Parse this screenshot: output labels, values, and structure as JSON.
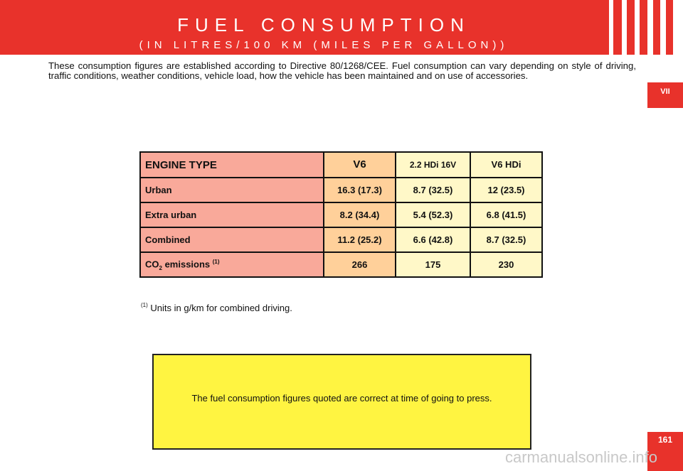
{
  "header": {
    "title": "FUEL CONSUMPTION",
    "subtitle": "(IN LITRES/100 KM (MILES PER GALLON))"
  },
  "intro_text": "These consumption figures are established according to Directive 80/1268/CEE. Fuel consumption can vary depending on style of driving, traffic conditions, weather conditions, vehicle load, how the vehicle has been maintained and on use of accessories.",
  "section_tab": "VII",
  "page_number": "161",
  "table": {
    "headers": [
      "ENGINE TYPE",
      "V6",
      "2.2 HDi 16V",
      "V6 HDi"
    ],
    "rows": [
      {
        "label": "Urban",
        "v6": "16.3 (17.3)",
        "hdi22": "8.7 (32.5)",
        "v6hdi": "12 (23.5)"
      },
      {
        "label": "Extra urban",
        "v6": "8.2 (34.4)",
        "hdi22": "5.4 (52.3)",
        "v6hdi": "6.8 (41.5)"
      },
      {
        "label": "Combined",
        "v6": "11.2 (25.2)",
        "hdi22": "6.6 (42.8)",
        "v6hdi": "8.7 (32.5)"
      }
    ],
    "co2": {
      "label_main": "CO",
      "label_sub": "2",
      "label_rest": " emissions ",
      "label_sup": "(1)",
      "v6": "266",
      "hdi22": "175",
      "v6hdi": "230"
    }
  },
  "footnote": {
    "marker": "(1)",
    "text": " Units in g/km for combined driving."
  },
  "note": "The fuel consumption figures quoted are correct at time of going to press.",
  "watermark": "carmanualsonline.info",
  "colors": {
    "brand_red": "#e8322b",
    "note_yellow": "#fff441",
    "label_pink": "#f9a99a",
    "v6_orange": "#ffd09a",
    "cell_cream": "#fff8c8"
  }
}
